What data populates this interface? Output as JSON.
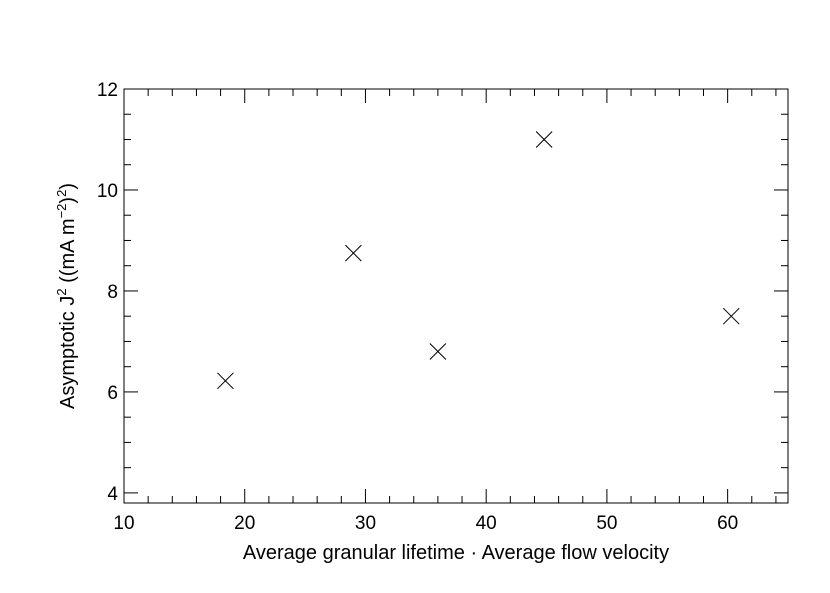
{
  "chart_data": {
    "type": "scatter",
    "marker": "x",
    "xlabel": "Average granular lifetime · Average flow velocity",
    "ylabel": {
      "prefix": "Asymptotic J",
      "sup1": "2",
      "middle": " ((mA m",
      "sup2": "−2",
      "close": ")",
      "sup3": "2",
      "suffix": ")"
    },
    "xlim": [
      10,
      65
    ],
    "ylim": [
      3.8,
      12
    ],
    "xticks": [
      10,
      20,
      30,
      40,
      50,
      60
    ],
    "yticks": [
      4,
      6,
      8,
      10,
      12
    ],
    "grid": false,
    "points": [
      {
        "x": 18.4,
        "y": 6.22
      },
      {
        "x": 29.0,
        "y": 8.75
      },
      {
        "x": 36.0,
        "y": 6.8
      },
      {
        "x": 44.8,
        "y": 11.0
      },
      {
        "x": 60.3,
        "y": 7.5
      }
    ]
  }
}
